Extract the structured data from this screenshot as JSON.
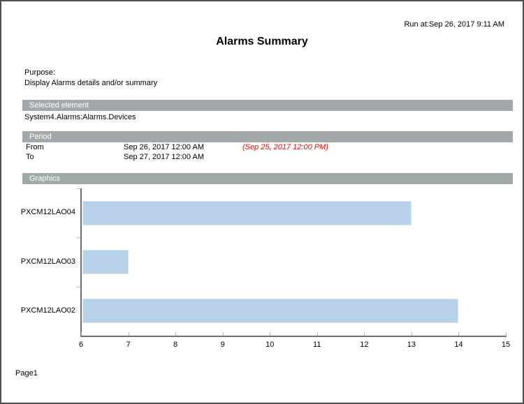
{
  "report": {
    "run_at": "Run at:Sep 26, 2017 9:11 AM",
    "title": "Alarms Summary",
    "purpose_label": "Purpose:",
    "purpose_text": "Display Alarms details and/or summary",
    "page_label": "Page1"
  },
  "selected_element": {
    "header": "Selected element",
    "value": "System4.Alarms:Alarms.Devices"
  },
  "period": {
    "header": "Period",
    "rows": [
      {
        "label": "From",
        "value": "Sep 26, 2017 12:00 AM",
        "note": "(Sep 25, 2017 12:00 PM)"
      },
      {
        "label": "To",
        "value": "Sep 27, 2017 12:00 AM",
        "note": ""
      }
    ]
  },
  "graphics": {
    "header": "Graphics"
  },
  "chart_data": {
    "type": "bar",
    "orientation": "horizontal",
    "categories": [
      "PXCM12LAO04",
      "PXCM12LAO03",
      "PXCM12LAO02"
    ],
    "values": [
      13,
      7,
      14
    ],
    "xlim": [
      6,
      15
    ],
    "xticks": [
      6,
      7,
      8,
      9,
      10,
      11,
      12,
      13,
      14,
      15
    ],
    "title": "",
    "xlabel": "",
    "ylabel": "",
    "grid": false,
    "legend": false,
    "bar_color": "#b7d2e8",
    "bar_border": "#d9e6f2"
  },
  "colors": {
    "section_header_bg": "#a3a8ab",
    "section_header_text": "#ffffff",
    "note_red": "#ff0000",
    "axis_line": "#6f6f6f",
    "tick_line": "#b5b5b5",
    "page_border": "#4f4f4f",
    "bar_fill": "#b7d2e8"
  }
}
